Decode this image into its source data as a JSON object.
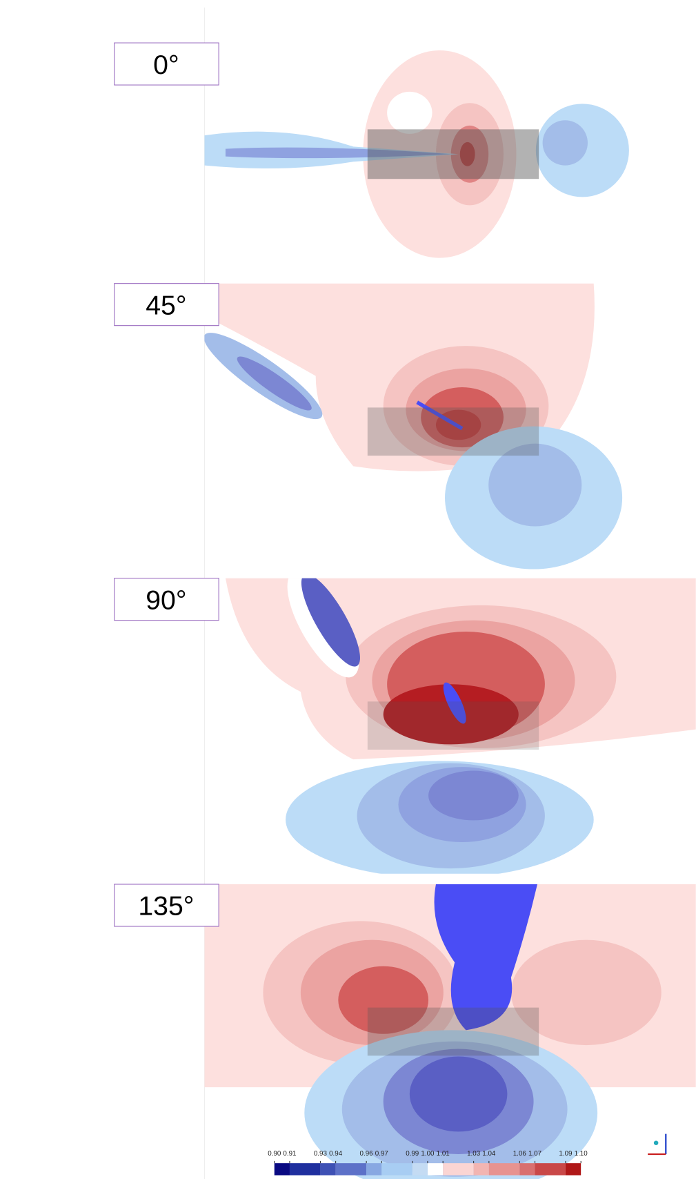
{
  "panels": [
    {
      "label": "0°"
    },
    {
      "label": "45°"
    },
    {
      "label": "90°"
    },
    {
      "label": "135°"
    }
  ],
  "colorbar": {
    "ticks": [
      {
        "value": 0.9,
        "label": "0.90"
      },
      {
        "value": 0.91,
        "label": "0.91"
      },
      {
        "value": 0.93,
        "label": "0.93"
      },
      {
        "value": 0.94,
        "label": "0.94"
      },
      {
        "value": 0.96,
        "label": "0.96"
      },
      {
        "value": 0.97,
        "label": "0.97"
      },
      {
        "value": 0.99,
        "label": "0.99"
      },
      {
        "value": 1.0,
        "label": "1.00"
      },
      {
        "value": 1.01,
        "label": "1.01"
      },
      {
        "value": 1.03,
        "label": "1.03"
      },
      {
        "value": 1.04,
        "label": "1.04"
      },
      {
        "value": 1.06,
        "label": "1.06"
      },
      {
        "value": 1.07,
        "label": "1.07"
      },
      {
        "value": 1.09,
        "label": "1.09"
      },
      {
        "value": 1.1,
        "label": "1.10"
      }
    ],
    "colors": [
      "#0a0a82",
      "#1f2f9e",
      "#3e50b4",
      "#5d71c8",
      "#88a8e2",
      "#a8cdf3",
      "#c4dbf3",
      "#ffffff",
      "#fbd5d3",
      "#f2b5b2",
      "#e79390",
      "#d97070",
      "#c94848",
      "#b01818"
    ]
  }
}
